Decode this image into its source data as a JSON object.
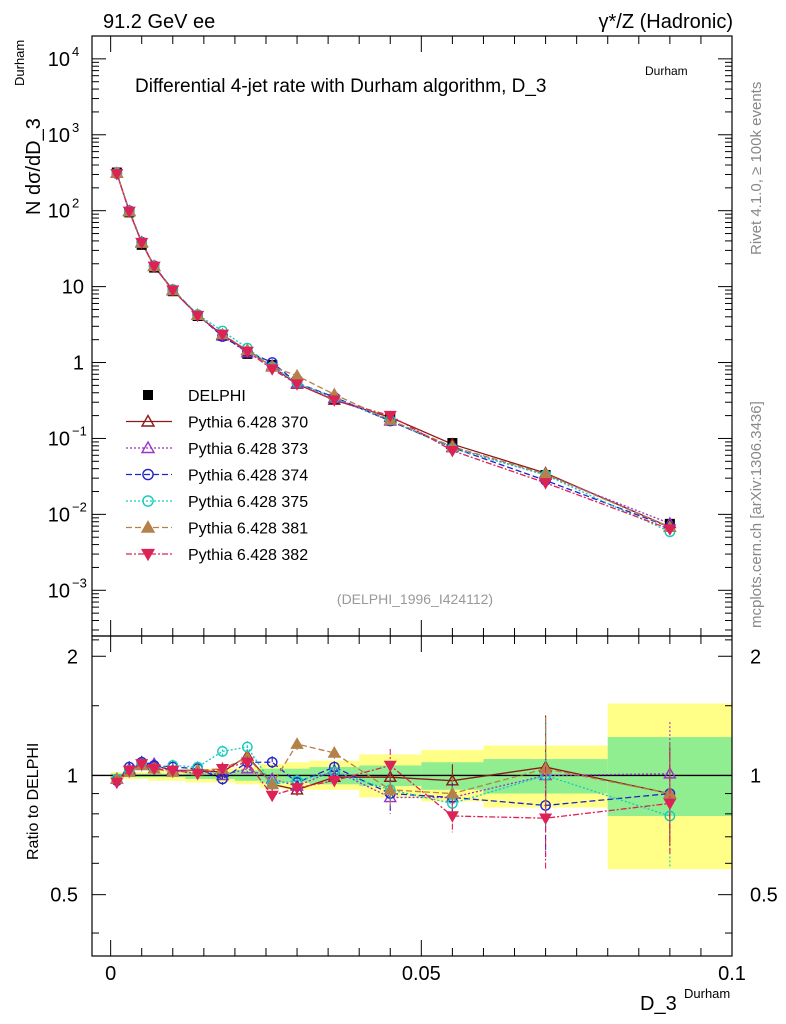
{
  "header": {
    "left": "91.2 GeV ee",
    "right": "γ*/Z (Hadronic)",
    "title_main": "Differential 4-jet rate with Durham algorithm, D_3",
    "title_sup": "Durham",
    "watermark": "(DELPHI_1996_I424112)",
    "side_rivet": "Rivet 4.1.0, ≥ 100k events",
    "side_mcplots": "mcplots.cern.ch [arXiv:1306.3436]"
  },
  "axes": {
    "ylabel_main": "N  dσ/dD_3",
    "ylabel_main_sup": "Durham",
    "ylabel_ratio": "Ratio to DELPHI",
    "xlabel": "D_3",
    "xlabel_sup": "Durham"
  },
  "chart_data": [
    {
      "type": "line",
      "panel": "main",
      "yscale": "log",
      "xlim": [
        -0.003,
        0.1
      ],
      "ylim": [
        0.00025,
        20000
      ],
      "x": [
        0.001,
        0.003,
        0.005,
        0.007,
        0.01,
        0.014,
        0.018,
        0.022,
        0.026,
        0.03,
        0.036,
        0.045,
        0.055,
        0.07,
        0.09
      ],
      "yticks": [
        {
          "v": 0.001,
          "m": "10",
          "e": "−3"
        },
        {
          "v": 0.01,
          "m": "10",
          "e": "−2"
        },
        {
          "v": 0.1,
          "m": "10",
          "e": "−1"
        },
        {
          "v": 1,
          "m": "1",
          "e": ""
        },
        {
          "v": 10,
          "m": "10",
          "e": ""
        },
        {
          "v": 100,
          "m": "10",
          "e": "2"
        },
        {
          "v": 1000,
          "m": "10",
          "e": "3"
        },
        {
          "v": 10000,
          "m": "10",
          "e": "4"
        }
      ],
      "data": {
        "name": "DELPHI",
        "values": [
          318,
          95,
          35.5,
          17.8,
          8.7,
          4.1,
          2.25,
          1.3,
          0.93,
          0.56,
          0.33,
          0.19,
          0.087,
          0.033,
          0.0075
        ]
      },
      "series": [
        {
          "name": "Pythia 6.428 370",
          "color": "#8b1a1a",
          "marker": "tri-up-open",
          "dash": "",
          "values": [
            312,
            98,
            38,
            18.5,
            8.9,
            4.2,
            2.3,
            1.45,
            0.88,
            0.52,
            0.32,
            0.19,
            0.084,
            0.035,
            0.0068
          ]
        },
        {
          "name": "Pythia 6.428 373",
          "color": "#9933cc",
          "marker": "tri-up-open",
          "dash": "2,2",
          "values": [
            312,
            99,
            38.5,
            18.6,
            8.9,
            4.2,
            2.25,
            1.35,
            0.91,
            0.53,
            0.34,
            0.17,
            0.076,
            0.033,
            0.0076
          ]
        },
        {
          "name": "Pythia 6.428 374",
          "color": "#2222cc",
          "marker": "circle-open",
          "dash": "6,3",
          "values": [
            308,
            100,
            38.5,
            18.8,
            9.1,
            4.25,
            2.2,
            1.4,
            1.0,
            0.54,
            0.35,
            0.17,
            0.076,
            0.028,
            0.0068
          ]
        },
        {
          "name": "Pythia 6.428 375",
          "color": "#11ccbb",
          "marker": "circle-open",
          "dash": "2,2",
          "values": [
            312,
            98,
            38,
            18.5,
            9.2,
            4.3,
            2.6,
            1.55,
            0.88,
            0.54,
            0.34,
            0.175,
            0.074,
            0.033,
            0.0059
          ]
        },
        {
          "name": "Pythia 6.428 381",
          "color": "#b5814a",
          "marker": "tri-up-filled",
          "dash": "6,3",
          "values": [
            312,
            97,
            37.5,
            18.5,
            8.9,
            4.2,
            2.35,
            1.45,
            0.88,
            0.67,
            0.38,
            0.175,
            0.078,
            0.034,
            0.0068
          ]
        },
        {
          "name": "Pythia 6.428 382",
          "color": "#dd2255",
          "marker": "tri-down-filled",
          "dash": "6,2,2,2",
          "values": [
            306,
            98,
            38,
            18.5,
            9.0,
            4.15,
            2.35,
            1.4,
            0.82,
            0.52,
            0.32,
            0.2,
            0.069,
            0.026,
            0.0064
          ]
        }
      ],
      "xticks": []
    },
    {
      "type": "line",
      "panel": "ratio",
      "xlim": [
        -0.003,
        0.1
      ],
      "ylim": [
        0.35,
        2.25
      ],
      "yticks": [
        0.5,
        1,
        2
      ],
      "xticks": [
        0,
        0.05,
        0.1
      ],
      "xtick_labels": [
        "0",
        "0.05",
        "0.1"
      ],
      "bands": {
        "edges": [
          0,
          0.002,
          0.004,
          0.006,
          0.008,
          0.012,
          0.016,
          0.02,
          0.024,
          0.028,
          0.032,
          0.04,
          0.05,
          0.06,
          0.08,
          0.1
        ],
        "green": [
          [
            0.99,
            1.01
          ],
          [
            0.99,
            1.01
          ],
          [
            0.99,
            1.01
          ],
          [
            0.99,
            1.01
          ],
          [
            0.99,
            1.01
          ],
          [
            0.98,
            1.02
          ],
          [
            0.98,
            1.02
          ],
          [
            0.97,
            1.03
          ],
          [
            0.96,
            1.04
          ],
          [
            0.96,
            1.04
          ],
          [
            0.95,
            1.05
          ],
          [
            0.94,
            1.06
          ],
          [
            0.92,
            1.08
          ],
          [
            0.9,
            1.1
          ],
          [
            0.79,
            1.25
          ]
        ],
        "yellow": [
          [
            0.98,
            1.02
          ],
          [
            0.98,
            1.02
          ],
          [
            0.98,
            1.02
          ],
          [
            0.97,
            1.03
          ],
          [
            0.97,
            1.03
          ],
          [
            0.96,
            1.04
          ],
          [
            0.96,
            1.04
          ],
          [
            0.95,
            1.05
          ],
          [
            0.93,
            1.07
          ],
          [
            0.92,
            1.08
          ],
          [
            0.92,
            1.09
          ],
          [
            0.88,
            1.13
          ],
          [
            0.86,
            1.16
          ],
          [
            0.83,
            1.19
          ],
          [
            0.58,
            1.52
          ]
        ]
      },
      "series": [
        {
          "name": "Pythia 6.428 370",
          "values": [
            0.98,
            1.03,
            1.07,
            1.06,
            1.03,
            1.03,
            1.02,
            1.12,
            0.95,
            0.92,
            0.99,
            0.99,
            0.97,
            1.05,
            0.9
          ]
        },
        {
          "name": "Pythia 6.428 373",
          "values": [
            0.98,
            1.04,
            1.08,
            1.07,
            1.03,
            1.03,
            1.0,
            1.04,
            0.98,
            0.94,
            1.03,
            0.88,
            0.88,
            1.0,
            1.01
          ]
        },
        {
          "name": "Pythia 6.428 374",
          "values": [
            0.97,
            1.05,
            1.08,
            1.06,
            1.05,
            1.04,
            0.98,
            1.08,
            1.08,
            0.96,
            1.05,
            0.9,
            0.88,
            0.84,
            0.9
          ]
        },
        {
          "name": "Pythia 6.428 375",
          "values": [
            0.98,
            1.03,
            1.07,
            1.04,
            1.06,
            1.05,
            1.15,
            1.18,
            0.95,
            0.97,
            1.02,
            0.92,
            0.85,
            1.0,
            0.79
          ]
        },
        {
          "name": "Pythia 6.428 381",
          "values": [
            0.98,
            1.02,
            1.06,
            1.04,
            1.02,
            1.03,
            1.04,
            1.11,
            0.95,
            1.2,
            1.14,
            0.92,
            0.9,
            1.04,
            0.9
          ]
        },
        {
          "name": "Pythia 6.428 382",
          "values": [
            0.96,
            1.03,
            1.07,
            1.04,
            1.03,
            1.01,
            1.04,
            1.08,
            0.89,
            0.93,
            0.97,
            1.06,
            0.79,
            0.78,
            0.85
          ]
        }
      ]
    }
  ]
}
